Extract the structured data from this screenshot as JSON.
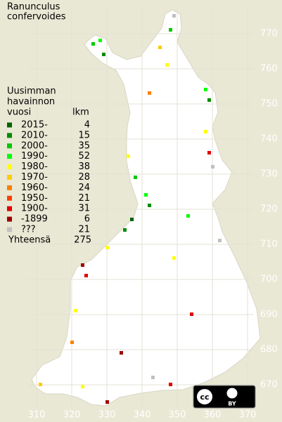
{
  "title": [
    "Ranunculus",
    "confervoides"
  ],
  "legend": {
    "header": [
      "Uusimman",
      "havainnon",
      "vuosi"
    ],
    "count_header": "lkm",
    "rows": [
      {
        "label": "2015-",
        "count": 4,
        "color": "#006400"
      },
      {
        "label": "2010-",
        "count": 15,
        "color": "#008c00"
      },
      {
        "label": "2000-",
        "count": 35,
        "color": "#00c800"
      },
      {
        "label": "1990-",
        "count": 52,
        "color": "#00ff00"
      },
      {
        "label": "1980-",
        "count": 38,
        "color": "#ffff00"
      },
      {
        "label": "1970-",
        "count": 28,
        "color": "#ffcc00"
      },
      {
        "label": "1960-",
        "count": 24,
        "color": "#ff8000"
      },
      {
        "label": "1950-",
        "count": 21,
        "color": "#ff4000"
      },
      {
        "label": "1900-",
        "count": 31,
        "color": "#e00000"
      },
      {
        "label": "-1899",
        "count": 6,
        "color": "#a00000"
      },
      {
        "label": "???",
        "count": 21,
        "color": "#c0c0c0"
      }
    ],
    "total_label": "Yhteensä",
    "total": 275
  },
  "grid": {
    "northing": [
      770,
      760,
      750,
      740,
      730,
      720,
      710,
      700,
      690,
      680,
      670
    ],
    "easting": [
      310,
      320,
      330,
      340,
      350,
      360,
      370
    ]
  },
  "license": {
    "cc": "cc",
    "badge": "BY"
  }
}
